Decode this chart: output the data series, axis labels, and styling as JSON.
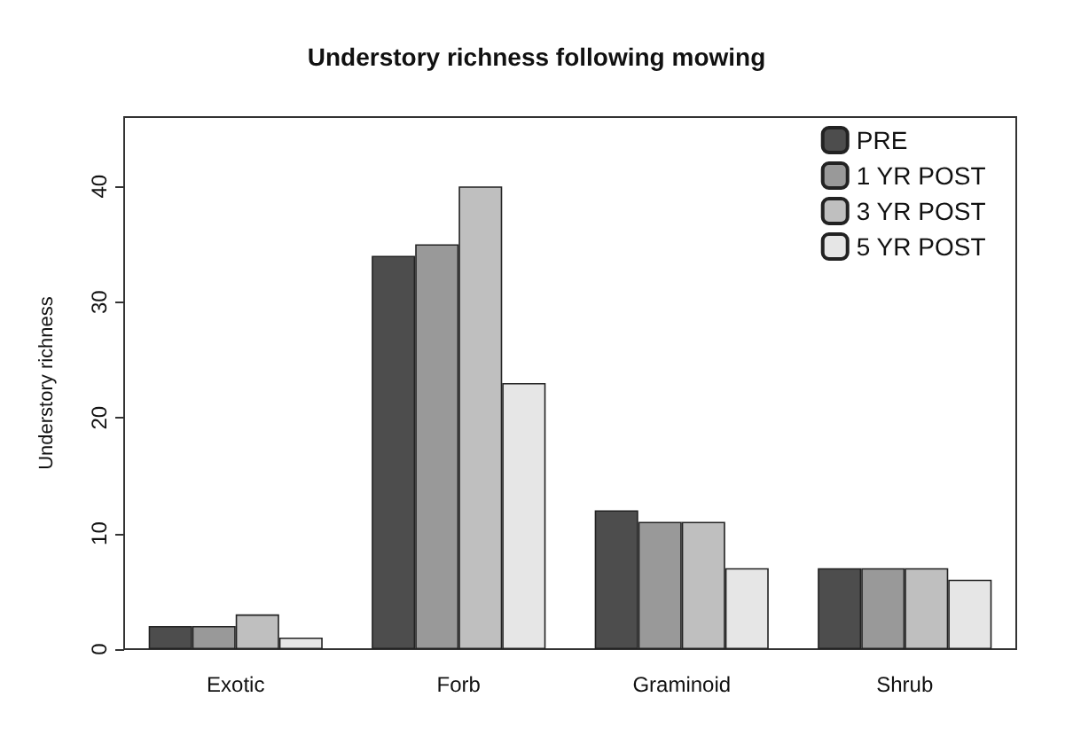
{
  "chart_data": {
    "type": "bar",
    "title": "Understory richness following mowing",
    "ylabel": "Understory richness",
    "categories": [
      "Exotic",
      "Forb",
      "Graminoid",
      "Shrub"
    ],
    "series": [
      {
        "name": "PRE",
        "color": "#4d4d4d",
        "values": [
          2,
          34,
          12,
          7
        ]
      },
      {
        "name": "1 YR POST",
        "color": "#999999",
        "values": [
          2,
          35,
          11,
          7
        ]
      },
      {
        "name": "3 YR POST",
        "color": "#bfbfbf",
        "values": [
          3,
          40,
          11,
          7
        ]
      },
      {
        "name": "5 YR POST",
        "color": "#e6e6e6",
        "values": [
          1,
          23,
          7,
          6
        ]
      }
    ],
    "ylim": [
      0,
      46
    ],
    "yticks": [
      0,
      10,
      20,
      30,
      40
    ],
    "grid": false,
    "legend": "top right"
  }
}
